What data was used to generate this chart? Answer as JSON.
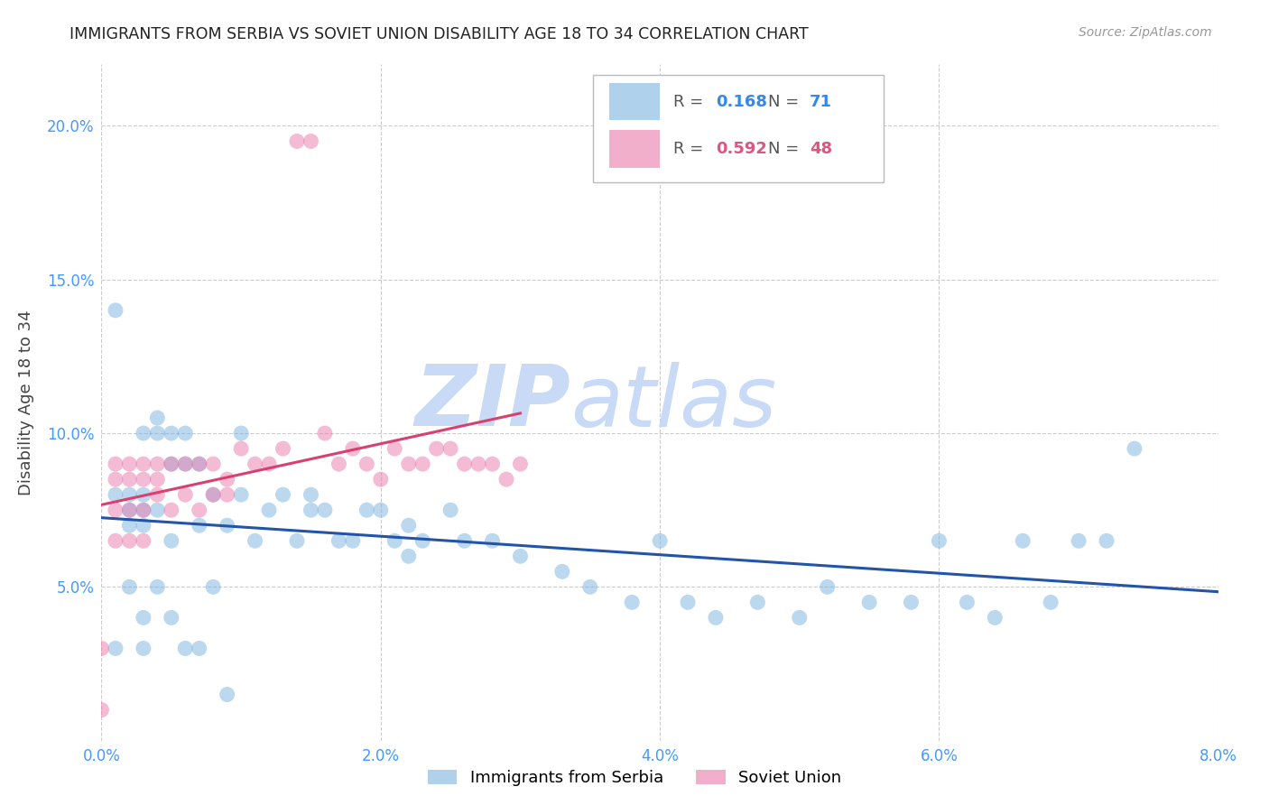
{
  "title": "IMMIGRANTS FROM SERBIA VS SOVIET UNION DISABILITY AGE 18 TO 34 CORRELATION CHART",
  "source": "Source: ZipAtlas.com",
  "ylabel": "Disability Age 18 to 34",
  "xlim": [
    0.0,
    0.08
  ],
  "ylim": [
    0.0,
    0.22
  ],
  "xticks": [
    0.0,
    0.02,
    0.04,
    0.06,
    0.08
  ],
  "yticks": [
    0.0,
    0.05,
    0.1,
    0.15,
    0.2
  ],
  "xtick_labels": [
    "0.0%",
    "2.0%",
    "4.0%",
    "6.0%",
    "8.0%"
  ],
  "ytick_labels": [
    "",
    "5.0%",
    "10.0%",
    "15.0%",
    "20.0%"
  ],
  "serbia_color": "#7ab3e0",
  "soviet_color": "#e87aaa",
  "serbia_R": 0.168,
  "serbia_N": 71,
  "soviet_R": 0.592,
  "soviet_N": 48,
  "serbia_label": "Immigrants from Serbia",
  "soviet_label": "Soviet Union",
  "watermark_zip": "ZIP",
  "watermark_atlas": "atlas",
  "watermark_color": "#c8daf5",
  "serbia_trendline_color": "#2255aa",
  "soviet_trendline_color": "#d94070",
  "serbia_x": [
    0.001,
    0.001,
    0.002,
    0.002,
    0.002,
    0.003,
    0.003,
    0.003,
    0.003,
    0.004,
    0.004,
    0.004,
    0.005,
    0.005,
    0.005,
    0.006,
    0.006,
    0.007,
    0.007,
    0.008,
    0.009,
    0.01,
    0.01,
    0.011,
    0.012,
    0.013,
    0.014,
    0.015,
    0.015,
    0.016,
    0.017,
    0.018,
    0.019,
    0.02,
    0.021,
    0.022,
    0.022,
    0.023,
    0.025,
    0.026,
    0.028,
    0.03,
    0.033,
    0.035,
    0.038,
    0.04,
    0.042,
    0.044,
    0.047,
    0.05,
    0.052,
    0.055,
    0.058,
    0.06,
    0.062,
    0.064,
    0.066,
    0.068,
    0.07,
    0.072,
    0.074,
    0.001,
    0.002,
    0.003,
    0.003,
    0.004,
    0.005,
    0.006,
    0.007,
    0.008,
    0.009
  ],
  "serbia_y": [
    0.14,
    0.08,
    0.075,
    0.07,
    0.08,
    0.075,
    0.08,
    0.07,
    0.1,
    0.075,
    0.1,
    0.105,
    0.065,
    0.09,
    0.1,
    0.09,
    0.1,
    0.07,
    0.09,
    0.08,
    0.07,
    0.08,
    0.1,
    0.065,
    0.075,
    0.08,
    0.065,
    0.075,
    0.08,
    0.075,
    0.065,
    0.065,
    0.075,
    0.075,
    0.065,
    0.06,
    0.07,
    0.065,
    0.075,
    0.065,
    0.065,
    0.06,
    0.055,
    0.05,
    0.045,
    0.065,
    0.045,
    0.04,
    0.045,
    0.04,
    0.05,
    0.045,
    0.045,
    0.065,
    0.045,
    0.04,
    0.065,
    0.045,
    0.065,
    0.065,
    0.095,
    0.03,
    0.05,
    0.04,
    0.03,
    0.05,
    0.04,
    0.03,
    0.03,
    0.05,
    0.015
  ],
  "soviet_x": [
    0.001,
    0.001,
    0.001,
    0.002,
    0.002,
    0.002,
    0.003,
    0.003,
    0.003,
    0.004,
    0.004,
    0.004,
    0.005,
    0.005,
    0.006,
    0.006,
    0.007,
    0.007,
    0.008,
    0.008,
    0.009,
    0.009,
    0.01,
    0.011,
    0.012,
    0.013,
    0.014,
    0.015,
    0.016,
    0.017,
    0.018,
    0.019,
    0.02,
    0.021,
    0.022,
    0.023,
    0.024,
    0.025,
    0.026,
    0.027,
    0.028,
    0.029,
    0.03,
    0.0,
    0.0,
    0.001,
    0.002,
    0.003
  ],
  "soviet_y": [
    0.075,
    0.085,
    0.09,
    0.075,
    0.085,
    0.09,
    0.075,
    0.085,
    0.09,
    0.08,
    0.085,
    0.09,
    0.075,
    0.09,
    0.08,
    0.09,
    0.075,
    0.09,
    0.08,
    0.09,
    0.08,
    0.085,
    0.095,
    0.09,
    0.09,
    0.095,
    0.195,
    0.195,
    0.1,
    0.09,
    0.095,
    0.09,
    0.085,
    0.095,
    0.09,
    0.09,
    0.095,
    0.095,
    0.09,
    0.09,
    0.09,
    0.085,
    0.09,
    0.01,
    0.03,
    0.065,
    0.065,
    0.065
  ]
}
